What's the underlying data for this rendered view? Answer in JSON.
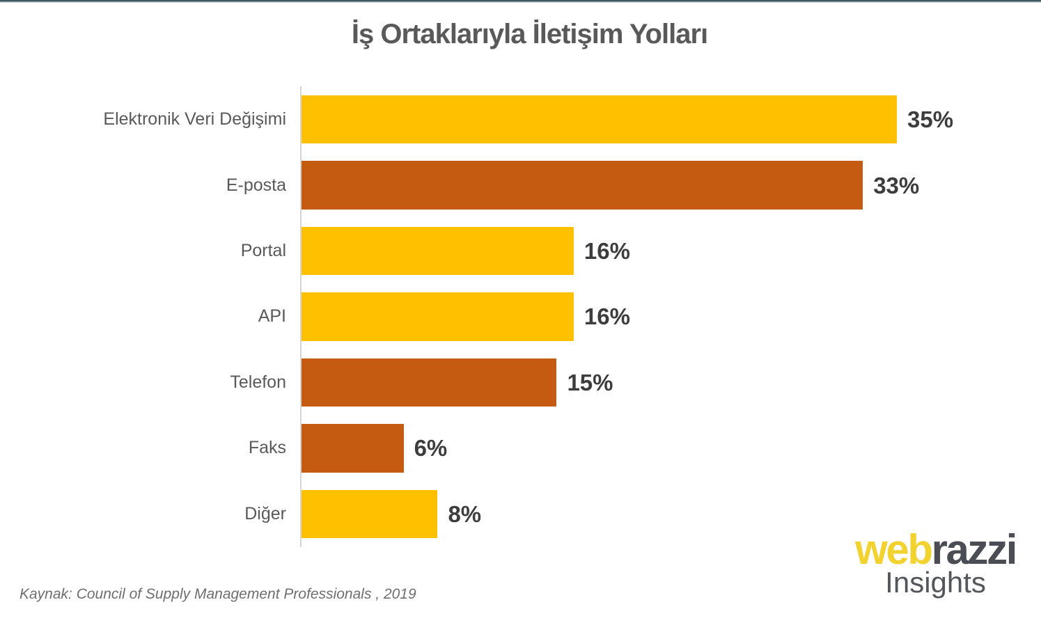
{
  "chart_data": {
    "type": "bar",
    "orientation": "horizontal",
    "title": "İş Ortaklarıyla İletişim Yolları",
    "categories": [
      "Elektronik Veri Değişimi",
      "E-posta",
      "Portal",
      "API",
      "Telefon",
      "Faks",
      "Diğer"
    ],
    "values": [
      35,
      33,
      16,
      16,
      15,
      6,
      8
    ],
    "value_labels": [
      "35%",
      "33%",
      "16%",
      "16%",
      "15%",
      "6%",
      "8%"
    ],
    "bar_colors": [
      "#ffc000",
      "#c55a11",
      "#ffc000",
      "#ffc000",
      "#c55a11",
      "#c55a11",
      "#ffc000"
    ],
    "xlabel": "",
    "ylabel": "",
    "xlim": [
      0,
      43.5
    ],
    "grid": false,
    "legend": false
  },
  "colors": {
    "gold_bar": "#ffc000",
    "orange_bar": "#c55a11",
    "title_text": "#595959",
    "category_text": "#595959",
    "value_text": "#3d3d3d",
    "axis_line": "#d6d6d6",
    "top_accent": "#3c5660",
    "source_text": "#6e6e6e",
    "logo_yellow": "#f2d22e",
    "logo_slate": "#4a4e54",
    "logo_sub_gray": "#53575c"
  },
  "footer": {
    "source": "Kaynak: Council of Supply Management Professionals , 2019"
  },
  "logo": {
    "part1": "web",
    "part2": "razzi",
    "subtitle": "Insights"
  }
}
